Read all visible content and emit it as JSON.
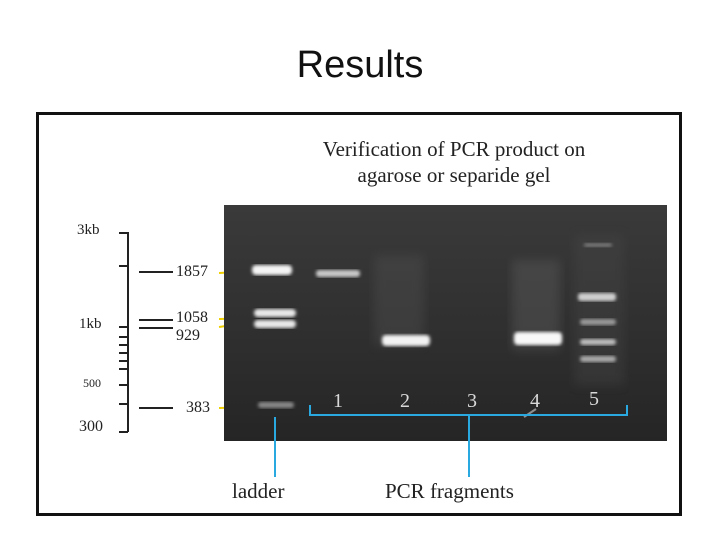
{
  "slide": {
    "title": "Results"
  },
  "figure": {
    "caption_line1": "Verification of  PCR product on",
    "caption_line2": "agarose or separide gel",
    "scale": {
      "top": "3kb",
      "mid": "1kb",
      "low": "500",
      "bottom": "300"
    },
    "bp_labels": [
      "1857",
      "1058",
      "929",
      "383"
    ],
    "lane_numbers": [
      "1",
      "2",
      "3",
      "4",
      "5"
    ],
    "ladder_label": "ladder",
    "fragments_label": "PCR fragments",
    "colors": {
      "marker_line": "#f0d000",
      "bracket": "#29a9e0",
      "gel_bg": "#2c2c2c"
    }
  }
}
